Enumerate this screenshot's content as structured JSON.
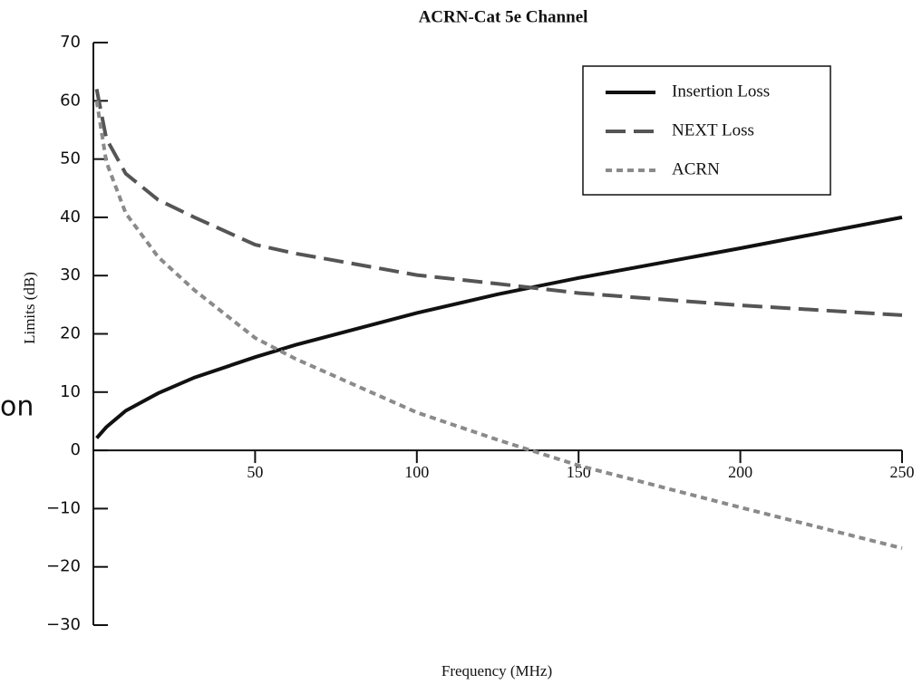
{
  "chart_data": {
    "type": "line",
    "title": "ACRN-Cat 5e Channel",
    "x_label": "Frequency (MHz)",
    "y_label": "Limits (dB)",
    "annotations": [
      "on"
    ],
    "x": [
      1,
      4,
      10,
      20,
      31.25,
      50,
      62.5,
      100,
      125,
      150,
      200,
      250
    ],
    "series": [
      {
        "name": "Insertion Loss",
        "color": "#111111",
        "dash": "solid",
        "values": [
          2.1,
          4.0,
          6.8,
          9.8,
          12.5,
          16.0,
          18.1,
          23.6,
          26.8,
          29.6,
          34.7,
          40.0
        ]
      },
      {
        "name": "NEXT Loss",
        "color": "#555555",
        "dash": "dashed",
        "values": [
          62,
          53.5,
          47.5,
          43,
          40,
          35.3,
          33.8,
          30.1,
          28.6,
          27.0,
          24.9,
          23.2
        ]
      },
      {
        "name": "ACRN",
        "color": "#8a8a8a",
        "dash": "dotted",
        "values": [
          60,
          49.5,
          40.7,
          33.2,
          27.5,
          19.3,
          15.7,
          6.5,
          1.8,
          -2.6,
          -9.8,
          -16.8
        ]
      }
    ],
    "xlim": [
      0,
      250
    ],
    "xticks": [
      50,
      100,
      150,
      200,
      250
    ],
    "ylim": [
      -30,
      70
    ],
    "yticks": [
      {
        "value": -30,
        "label": "−30"
      },
      {
        "value": -20,
        "label": "−20"
      },
      {
        "value": -10,
        "label": "−10"
      },
      0,
      10,
      20,
      30,
      40,
      50,
      60,
      70
    ],
    "legend": "top-right"
  }
}
